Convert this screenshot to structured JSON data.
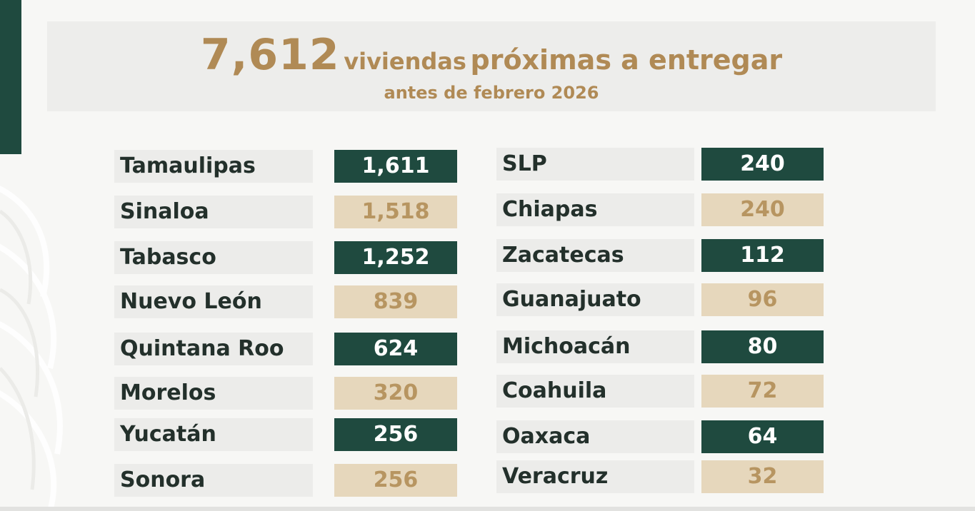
{
  "header": {
    "total": "7,612",
    "word1": "viviendas",
    "word2": "próximas a entregar",
    "subtitle": "antes de febrero 2026"
  },
  "left_column": [
    {
      "state": "Tamaulipas",
      "value": "1,611",
      "style": "dark"
    },
    {
      "state": "Sinaloa",
      "value": "1,518",
      "style": "light"
    },
    {
      "state": "Tabasco",
      "value": "1,252",
      "style": "dark"
    },
    {
      "state": "Nuevo León",
      "value": "839",
      "style": "light"
    },
    {
      "state": "Quintana Roo",
      "value": "624",
      "style": "dark"
    },
    {
      "state": "Morelos",
      "value": "320",
      "style": "light"
    },
    {
      "state": "Yucatán",
      "value": "256",
      "style": "dark"
    },
    {
      "state": "Sonora",
      "value": "256",
      "style": "light"
    }
  ],
  "right_column": [
    {
      "state": "SLP",
      "value": "240",
      "style": "dark"
    },
    {
      "state": "Chiapas",
      "value": "240",
      "style": "light"
    },
    {
      "state": "Zacatecas",
      "value": "112",
      "style": "dark"
    },
    {
      "state": "Guanajuato",
      "value": "96",
      "style": "light"
    },
    {
      "state": "Michoacán",
      "value": "80",
      "style": "dark"
    },
    {
      "state": "Coahuila",
      "value": "72",
      "style": "light"
    },
    {
      "state": "Oaxaca",
      "value": "64",
      "style": "dark"
    },
    {
      "state": "Veracruz",
      "value": "32",
      "style": "light"
    }
  ],
  "colors": {
    "dark_green": "#1f4a3f",
    "gold_text": "#b08a55",
    "light_beige": "#e6d7bc"
  }
}
